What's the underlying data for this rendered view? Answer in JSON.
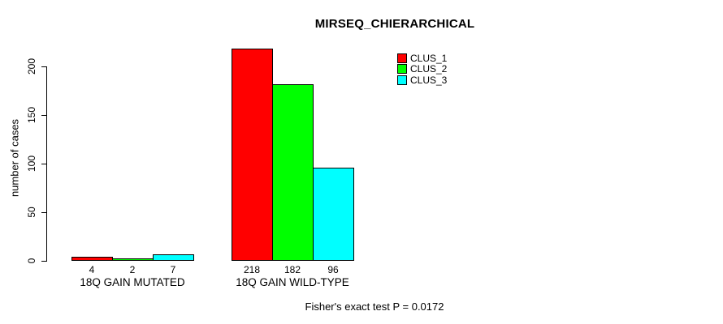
{
  "chart_data": {
    "type": "bar",
    "title": "MIRSEQ_CHIERARCHICAL",
    "ylabel": "number of cases",
    "xlabel": "",
    "categories": [
      "18Q GAIN MUTATED",
      "18Q GAIN WILD-TYPE"
    ],
    "series": [
      {
        "name": "CLUS_1",
        "color": "#ff0000",
        "values": [
          4,
          218
        ]
      },
      {
        "name": "CLUS_2",
        "color": "#00ff00",
        "values": [
          2,
          182
        ]
      },
      {
        "name": "CLUS_3",
        "color": "#00ffff",
        "values": [
          7,
          96
        ]
      }
    ],
    "bar_value_labels": [
      [
        4,
        2,
        7
      ],
      [
        218,
        182,
        96
      ]
    ],
    "yticks": [
      0,
      50,
      100,
      150,
      200
    ],
    "ylim": [
      0,
      225
    ],
    "grid": false,
    "legend": {
      "position": "top-right",
      "entries": [
        {
          "label": "CLUS_1",
          "color": "#ff0000"
        },
        {
          "label": "CLUS_2",
          "color": "#00ff00"
        },
        {
          "label": "CLUS_3",
          "color": "#00ffff"
        }
      ]
    },
    "annotation": "Fisher's exact test P = 0.0172"
  }
}
